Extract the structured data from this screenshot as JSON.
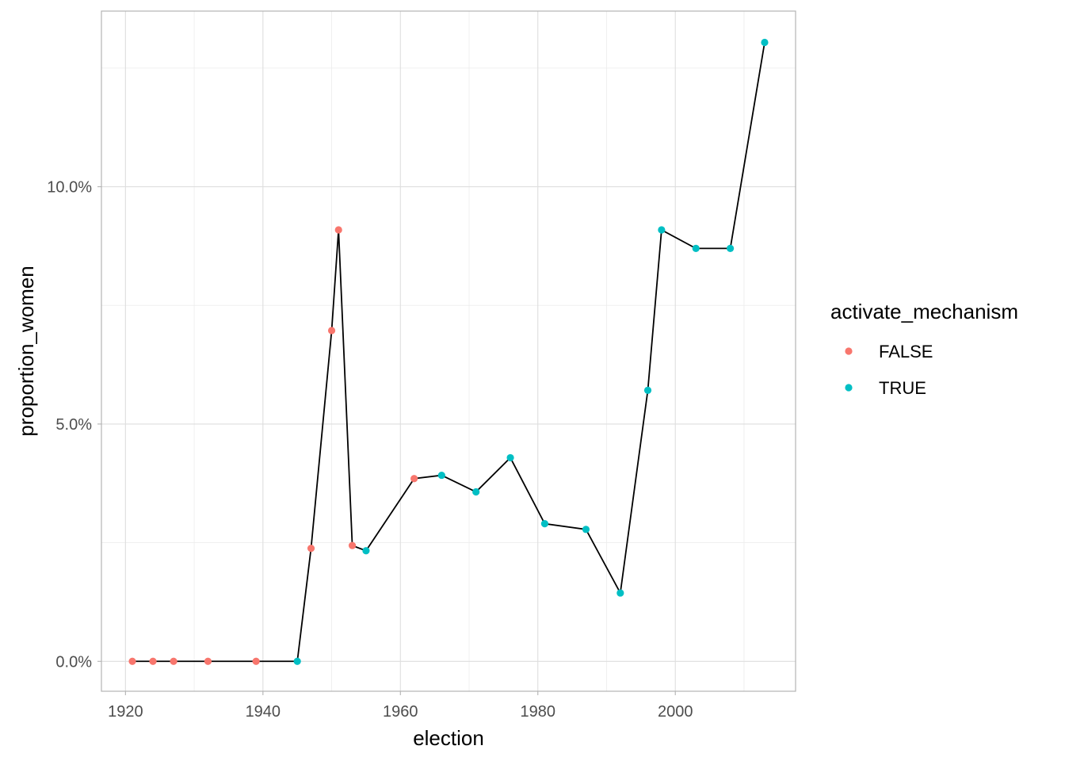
{
  "chart_data": {
    "type": "line",
    "xlabel": "election",
    "ylabel": "proportion_women",
    "xlim": [
      1916.5,
      2017.5
    ],
    "ylim": [
      -0.0063,
      0.137
    ],
    "x_ticks": [
      1920,
      1940,
      1960,
      1980,
      2000
    ],
    "x_tick_labels": [
      "1920",
      "1940",
      "1960",
      "1980",
      "2000"
    ],
    "y_ticks": [
      0.0,
      0.05,
      0.1
    ],
    "y_tick_labels": [
      "0.0%",
      "5.0%",
      "10.0%"
    ],
    "grid": true,
    "legend": {
      "title": "activate_mechanism",
      "position": "right",
      "entries": [
        {
          "label": "FALSE",
          "color": "#F8766D"
        },
        {
          "label": "TRUE",
          "color": "#00BFC4"
        }
      ]
    },
    "line_color": "#000000",
    "points": [
      {
        "x": 1921,
        "y": 0.0,
        "group": "FALSE"
      },
      {
        "x": 1924,
        "y": 0.0,
        "group": "FALSE"
      },
      {
        "x": 1927,
        "y": 0.0,
        "group": "FALSE"
      },
      {
        "x": 1932,
        "y": 0.0,
        "group": "FALSE"
      },
      {
        "x": 1939,
        "y": 0.0,
        "group": "FALSE"
      },
      {
        "x": 1945,
        "y": 0.0,
        "group": "TRUE"
      },
      {
        "x": 1947,
        "y": 0.0238,
        "group": "FALSE"
      },
      {
        "x": 1950,
        "y": 0.0697,
        "group": "FALSE"
      },
      {
        "x": 1951,
        "y": 0.0909,
        "group": "FALSE"
      },
      {
        "x": 1953,
        "y": 0.0244,
        "group": "FALSE"
      },
      {
        "x": 1955,
        "y": 0.0233,
        "group": "TRUE"
      },
      {
        "x": 1962,
        "y": 0.0385,
        "group": "FALSE"
      },
      {
        "x": 1966,
        "y": 0.0392,
        "group": "TRUE"
      },
      {
        "x": 1971,
        "y": 0.0357,
        "group": "TRUE"
      },
      {
        "x": 1976,
        "y": 0.0429,
        "group": "TRUE"
      },
      {
        "x": 1981,
        "y": 0.029,
        "group": "TRUE"
      },
      {
        "x": 1987,
        "y": 0.0278,
        "group": "TRUE"
      },
      {
        "x": 1992,
        "y": 0.0144,
        "group": "TRUE"
      },
      {
        "x": 1996,
        "y": 0.0571,
        "group": "TRUE"
      },
      {
        "x": 1998,
        "y": 0.0909,
        "group": "TRUE"
      },
      {
        "x": 2003,
        "y": 0.087,
        "group": "TRUE"
      },
      {
        "x": 2008,
        "y": 0.087,
        "group": "TRUE"
      },
      {
        "x": 2013,
        "y": 0.1304,
        "group": "TRUE"
      }
    ]
  }
}
